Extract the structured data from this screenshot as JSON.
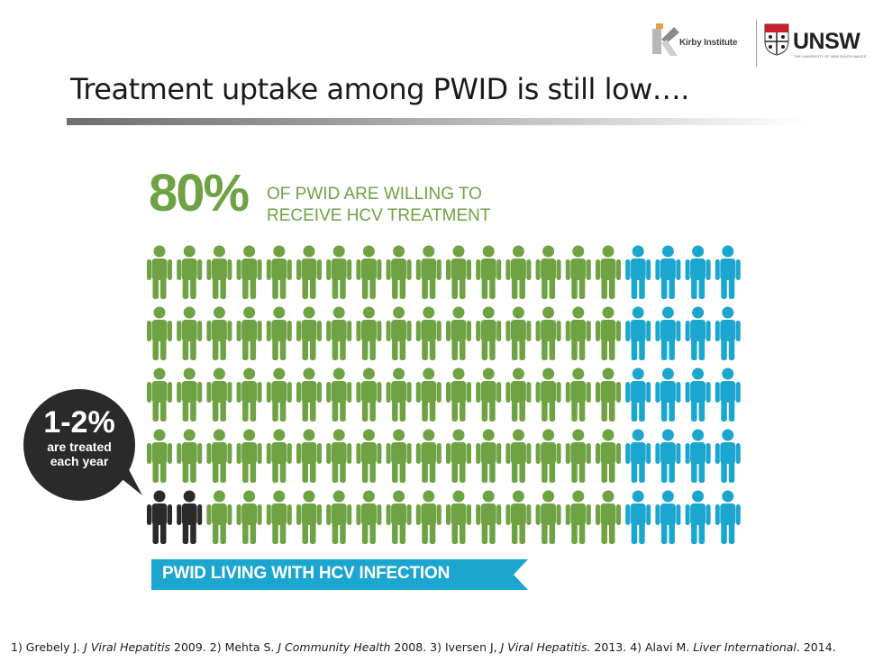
{
  "header": {
    "kirby_text": "Kirby Institute",
    "unsw_text": "UNSW",
    "unsw_subtext": "THE UNIVERSITY OF NEW SOUTH WALES"
  },
  "title": "Treatment uptake among PWID is still low….",
  "stat": {
    "percent": "80%",
    "line1": "OF PWID ARE WILLING TO",
    "line2": "RECEIVE HCV TREATMENT"
  },
  "figure_grid": {
    "rows": 5,
    "columns": 20,
    "green_columns": 16,
    "black_figures_in_last_row": 2
  },
  "colors": {
    "green": "#6ea243",
    "blue": "#1ba6cf",
    "black": "#2a2a2a",
    "bubble": "#2a2a2a",
    "banner": "#1ba6cf"
  },
  "bubble": {
    "percent": "1-2%",
    "line1": "are treated",
    "line2": "each year"
  },
  "banner": "PWID LIVING WITH HCV INFECTION",
  "references": [
    {
      "authors": "1) Grebely J. ",
      "journal": "J Viral Hepatitis",
      "year": " 2009. "
    },
    {
      "authors": "2) Mehta S. ",
      "journal": "J Community Health",
      "year": " 2008. "
    },
    {
      "authors": "3) Iversen J, ",
      "journal": "J Viral Hepatitis.",
      "year": " 2013. "
    },
    {
      "authors": "4) Alavi M. ",
      "journal": "Liver International",
      "year": ". 2014."
    }
  ]
}
